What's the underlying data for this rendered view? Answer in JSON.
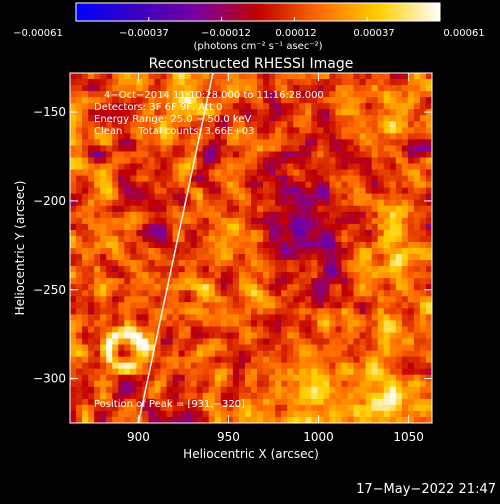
{
  "chart_data": {
    "type": "heatmap",
    "title": "Reconstructed RHESSI Image",
    "xlabel": "Heliocentric X (arcsec)",
    "ylabel": "Heliocentric Y (arcsec)",
    "xlim": [
      862,
      1063
    ],
    "ylim": [
      -325,
      -128
    ],
    "x_ticks": [
      {
        "value": 900,
        "label": "900"
      },
      {
        "value": 950,
        "label": "950"
      },
      {
        "value": 1000,
        "label": "1000"
      },
      {
        "value": 1050,
        "label": "1050"
      }
    ],
    "y_ticks": [
      {
        "value": -150,
        "label": "−150"
      },
      {
        "value": -200,
        "label": "−200"
      },
      {
        "value": -250,
        "label": "−250"
      },
      {
        "value": -300,
        "label": "−300"
      }
    ],
    "colorbar": {
      "min": -0.00061,
      "max": 0.00061,
      "ticks": [
        "−0.00061",
        "−0.00037",
        "−0.00012",
        "0.00012",
        "0.00037",
        "0.00061"
      ],
      "units": "(photons cm⁻² s⁻¹ asec⁻²)",
      "colormap": [
        "#0000ff",
        "#3a00c0",
        "#7a00a0",
        "#c00000",
        "#ff6a00",
        "#ffd000",
        "#ffffff"
      ]
    },
    "annotations": [
      "4−Oct−2014 11:10:28.000 to 11:16:28.000",
      "Detectors: 3F 6F 9F, Att 0",
      "Energy Range: 25.0 − 50.0 keV",
      "Clean     Total counts: 3.66E+03"
    ],
    "peak_label": "Position of Peak = [931,−320]",
    "limb_line": [
      {
        "x": 942,
        "y": -125
      },
      {
        "x": 900,
        "y": -325
      }
    ],
    "grid": false
  },
  "timestamp": "17−May−2022 21:47"
}
